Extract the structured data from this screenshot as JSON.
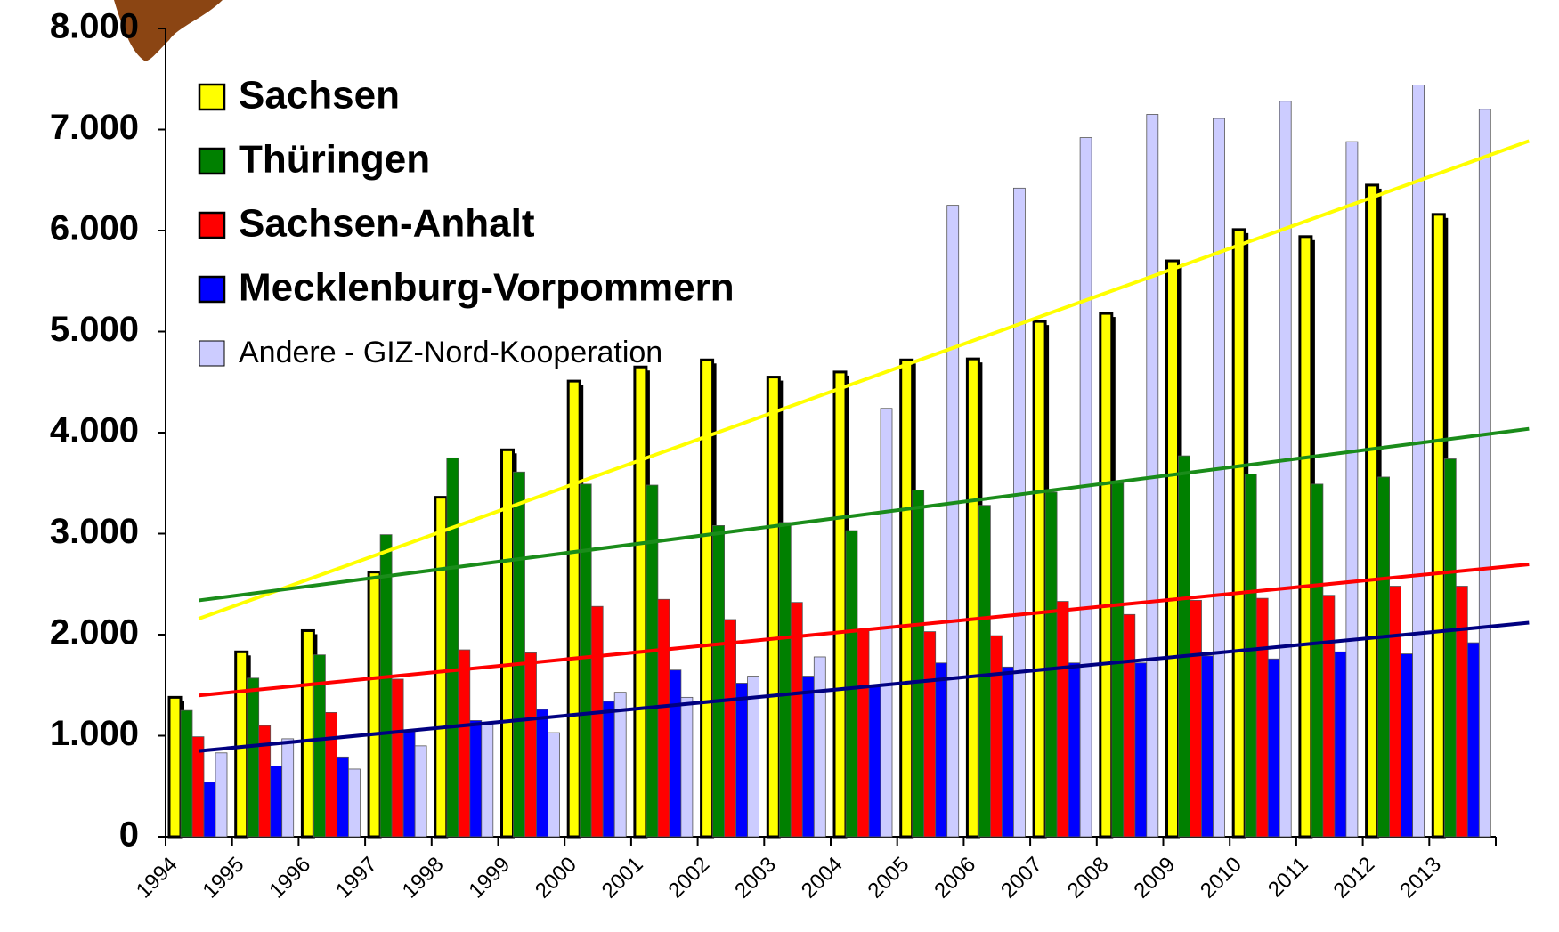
{
  "chart_data": {
    "type": "bar",
    "categories": [
      "1994",
      "1995",
      "1996",
      "1997",
      "1998",
      "1999",
      "2000",
      "2001",
      "2002",
      "2003",
      "2004",
      "2005",
      "2006",
      "2007",
      "2008",
      "2009",
      "2010",
      "2011",
      "2012",
      "2013"
    ],
    "series": [
      {
        "name": "Sachsen",
        "color": "#ffff00",
        "trend_color": "#ffff00",
        "values": [
          1380,
          1830,
          2040,
          2620,
          3360,
          3830,
          4510,
          4650,
          4720,
          4550,
          4600,
          4720,
          4730,
          5100,
          5180,
          5700,
          6010,
          5940,
          6450,
          6160
        ]
      },
      {
        "name": "Thüringen",
        "color": "#008000",
        "trend_color": "#1a8c1a",
        "values": [
          1250,
          1570,
          1800,
          2990,
          3750,
          3610,
          3490,
          3480,
          3080,
          3110,
          3030,
          3430,
          3280,
          3410,
          3500,
          3770,
          3590,
          3490,
          3560,
          3740
        ]
      },
      {
        "name": "Sachsen-Anhalt",
        "color": "#ff0000",
        "trend_color": "#ff0000",
        "values": [
          990,
          1100,
          1230,
          1560,
          1850,
          1820,
          2280,
          2350,
          2150,
          2320,
          2050,
          2030,
          1990,
          2330,
          2200,
          2340,
          2360,
          2390,
          2480,
          2480
        ]
      },
      {
        "name": "Mecklenburg-Vorpommern",
        "color": "#0000ff",
        "trend_color": "#000080",
        "values": [
          540,
          700,
          790,
          1050,
          1150,
          1260,
          1340,
          1650,
          1520,
          1590,
          1500,
          1720,
          1680,
          1720,
          1720,
          1790,
          1760,
          1830,
          1810,
          1920
        ]
      },
      {
        "name": "Andere - GIZ-Nord-Kooperation",
        "color": "#ccccff",
        "values": [
          830,
          970,
          670,
          900,
          1120,
          1030,
          1430,
          1380,
          1590,
          1780,
          4240,
          6250,
          6420,
          6920,
          7150,
          7110,
          7280,
          6880,
          7440,
          7200
        ]
      }
    ],
    "ylim": [
      0,
      8000
    ],
    "yticks": [
      0,
      {
        "value": 1000,
        "label": "1.000"
      },
      {
        "value": 2000,
        "label": "2.000"
      },
      {
        "value": 3000,
        "label": "3.000"
      },
      {
        "value": 4000,
        "label": "4.000"
      },
      {
        "value": 5000,
        "label": "5.000"
      },
      {
        "value": 6000,
        "label": "6.000"
      },
      {
        "value": 7000,
        "label": "7.000"
      },
      {
        "value": 8000,
        "label": "8.000"
      }
    ],
    "trendlines": true,
    "legend": "top-left"
  }
}
